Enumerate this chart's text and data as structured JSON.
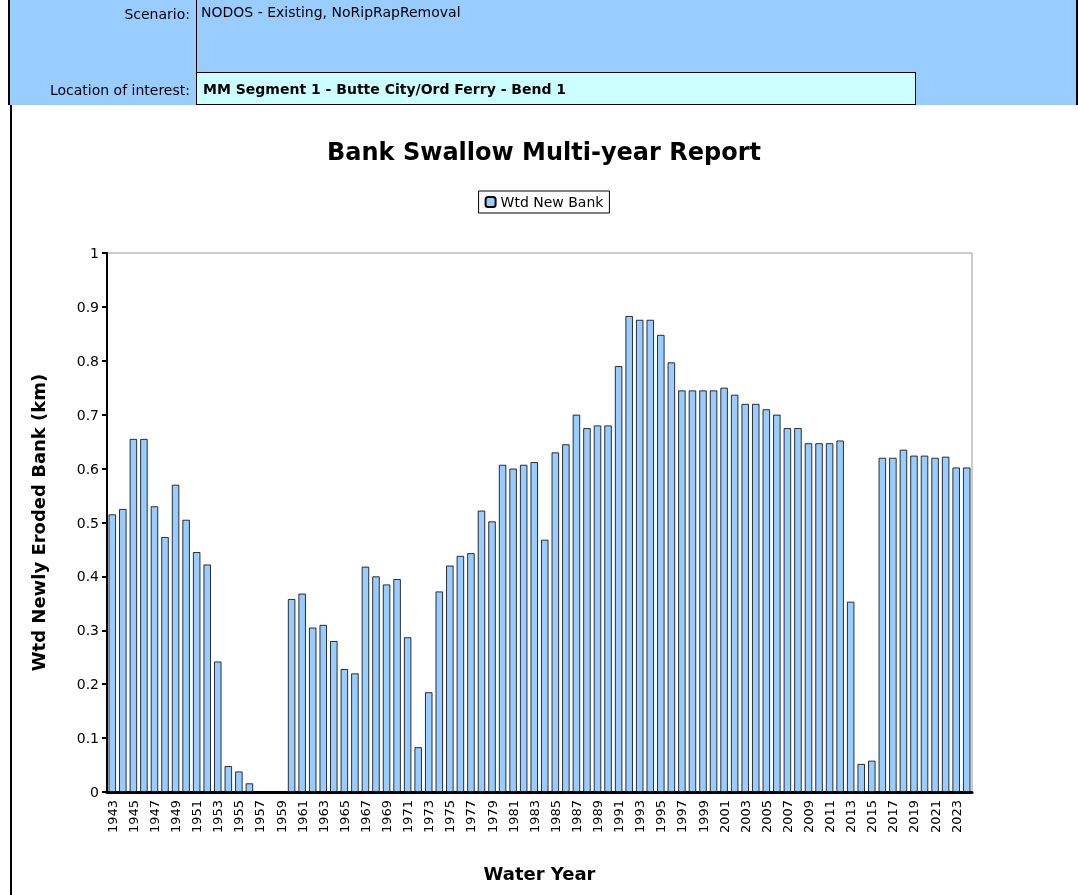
{
  "chart_data": {
    "type": "bar",
    "title": "Bank Swallow Multi-year Report",
    "annotations": [
      "Scenario:",
      "NODOS - Existing, NoRipRapRemoval",
      "Location of interest:",
      "MM Segment 1 - Butte City/Ord Ferry - Bend 1"
    ],
    "xlabel": "Water Year",
    "ylabel": "Wtd Newly Eroded Bank (km)",
    "categories": [
      "1943",
      null,
      "1945",
      null,
      "1947",
      null,
      "1949",
      null,
      "1951",
      null,
      "1953",
      null,
      "1955",
      null,
      "1957",
      null,
      "1959",
      null,
      "1961",
      null,
      "1963",
      null,
      "1965",
      null,
      "1967",
      null,
      "1969",
      null,
      "1971",
      null,
      "1973",
      null,
      "1975",
      null,
      "1977",
      null,
      "1979",
      null,
      "1981",
      null,
      "1983",
      null,
      "1985",
      null,
      "1987",
      null,
      "1989",
      null,
      "1991",
      null,
      "1993",
      null,
      "1995",
      null,
      "1997",
      null,
      "1999",
      null,
      "2001",
      null,
      "2003",
      null,
      "2005",
      null,
      "2007",
      null,
      "2009",
      null,
      "2011",
      null,
      "2013",
      null,
      "2015",
      null,
      "2017",
      null,
      "2019",
      null,
      "2021",
      null,
      "2023",
      null
    ],
    "series": [
      {
        "name": "Wtd New Bank",
        "color": "#99ccff",
        "values": [
          0.515,
          0.525,
          0.655,
          0.655,
          0.53,
          0.473,
          0.57,
          0.505,
          0.445,
          0.422,
          0.242,
          0.048,
          0.038,
          0.016,
          0,
          0,
          0,
          0.358,
          0.368,
          0.305,
          0.31,
          0.28,
          0.228,
          0.22,
          0.418,
          0.4,
          0.385,
          0.395,
          0.287,
          0.083,
          0.185,
          0.372,
          0.42,
          0.438,
          0.443,
          0.522,
          0.502,
          0.607,
          0.6,
          0.607,
          0.612,
          0.468,
          0.63,
          0.645,
          0.7,
          0.675,
          0.68,
          0.68,
          0.79,
          0.883,
          0.876,
          0.876,
          0.848,
          0.797,
          0.745,
          0.745,
          0.745,
          0.745,
          0.75,
          0.737,
          0.72,
          0.72,
          0.71,
          0.7,
          0.675,
          0.675,
          0.647,
          0.647,
          0.647,
          0.652,
          0.353,
          0.052,
          0.058,
          0.62,
          0.62,
          0.635,
          0.624,
          0.624,
          0.62,
          0.622,
          0.602,
          0.602
        ]
      }
    ],
    "ylim": [
      0,
      1
    ],
    "yticks": [
      0,
      0.1,
      0.2,
      0.3,
      0.4,
      0.5,
      0.6,
      0.7,
      0.8,
      0.9,
      1
    ],
    "grid": false,
    "legend": "top"
  }
}
